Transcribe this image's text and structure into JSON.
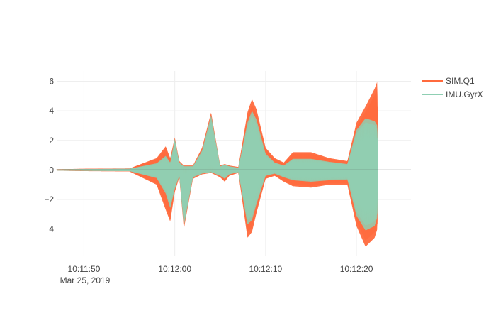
{
  "chart_data": {
    "type": "line",
    "title": "",
    "xlabel": "",
    "ylabel": "",
    "x_tick_labels": [
      "10:11:50",
      "10:12:00",
      "10:12:10",
      "10:12:20"
    ],
    "x_date_label": "Mar 25, 2019",
    "x_range": [
      "2019-03-25 10:11:47",
      "2019-03-25 10:12:26"
    ],
    "y_ticks": [
      -4,
      -2,
      0,
      2,
      4,
      6
    ],
    "y_tick_labels": [
      "−4",
      "−2",
      "0",
      "2",
      "4",
      "6"
    ],
    "ylim": [
      -5.8,
      6.7
    ],
    "grid": true,
    "legend_position": "top-right",
    "series": [
      {
        "name": "SIM.Q1",
        "color": "#ff6a3d",
        "envelope": {
          "t": [
            "10:11:47",
            "10:11:50",
            "10:11:55",
            "10:11:58",
            "10:11:59",
            "10:11:59.5",
            "10:12:00",
            "10:12:00.5",
            "10:12:01",
            "10:12:02",
            "10:12:03",
            "10:12:04",
            "10:12:05",
            "10:12:05.5",
            "10:12:06",
            "10:12:07",
            "10:12:08",
            "10:12:08.5",
            "10:12:09",
            "10:12:10",
            "10:12:11",
            "10:12:12",
            "10:12:13",
            "10:12:15",
            "10:12:17",
            "10:12:19",
            "10:12:20",
            "10:12:21",
            "10:12:22",
            "10:12:22.3",
            "10:12:22.4",
            "10:12:26"
          ],
          "upper": [
            0.05,
            0.08,
            0.1,
            0.8,
            1.6,
            0.8,
            2.2,
            0.6,
            0.3,
            0.3,
            1.5,
            3.9,
            0.3,
            0.4,
            0.3,
            0.2,
            3.9,
            4.8,
            4.1,
            1.5,
            0.8,
            0.5,
            1.2,
            1.2,
            0.8,
            0.6,
            3.2,
            4.3,
            5.5,
            6.0,
            0.05,
            0.05
          ],
          "lower": [
            -0.05,
            -0.08,
            -0.1,
            -1.0,
            -2.7,
            -3.5,
            -1.5,
            -0.5,
            -4.0,
            -0.6,
            -0.3,
            -0.2,
            -0.5,
            -0.8,
            -0.4,
            -0.2,
            -4.6,
            -4.2,
            -2.9,
            -0.6,
            -0.4,
            -0.8,
            -1.1,
            -1.2,
            -1.0,
            -1.0,
            -3.8,
            -5.2,
            -4.6,
            -4.0,
            -0.05,
            -0.05
          ]
        }
      },
      {
        "name": "IMU.GyrX",
        "color": "#8fcfb3",
        "envelope": {
          "t": [
            "10:11:47",
            "10:11:50",
            "10:11:55",
            "10:11:58",
            "10:11:59",
            "10:11:59.5",
            "10:12:00",
            "10:12:00.5",
            "10:12:01",
            "10:12:02",
            "10:12:03",
            "10:12:04",
            "10:12:05",
            "10:12:05.5",
            "10:12:06",
            "10:12:07",
            "10:12:08",
            "10:12:08.5",
            "10:12:09",
            "10:12:10",
            "10:12:11",
            "10:12:12",
            "10:12:13",
            "10:12:15",
            "10:12:17",
            "10:12:19",
            "10:12:20",
            "10:12:21",
            "10:12:22",
            "10:12:22.3",
            "10:12:22.4",
            "10:12:26"
          ],
          "upper": [
            0.04,
            0.06,
            0.08,
            0.45,
            0.95,
            0.5,
            2.1,
            0.5,
            0.25,
            0.25,
            1.3,
            3.7,
            0.25,
            0.35,
            0.25,
            0.15,
            3.2,
            4.0,
            3.4,
            1.1,
            0.5,
            0.3,
            0.75,
            0.75,
            0.55,
            0.4,
            2.7,
            3.5,
            3.3,
            3.0,
            0.04,
            0.04
          ],
          "lower": [
            -0.04,
            -0.06,
            -0.08,
            -0.55,
            -1.6,
            -2.6,
            -1.3,
            -0.4,
            -3.8,
            -0.5,
            -0.25,
            -0.15,
            -0.4,
            -0.6,
            -0.3,
            -0.15,
            -3.7,
            -3.4,
            -2.3,
            -0.4,
            -0.25,
            -0.5,
            -0.7,
            -0.8,
            -0.7,
            -0.65,
            -3.1,
            -4.1,
            -3.8,
            -3.2,
            -0.04,
            -0.04
          ]
        }
      }
    ]
  }
}
